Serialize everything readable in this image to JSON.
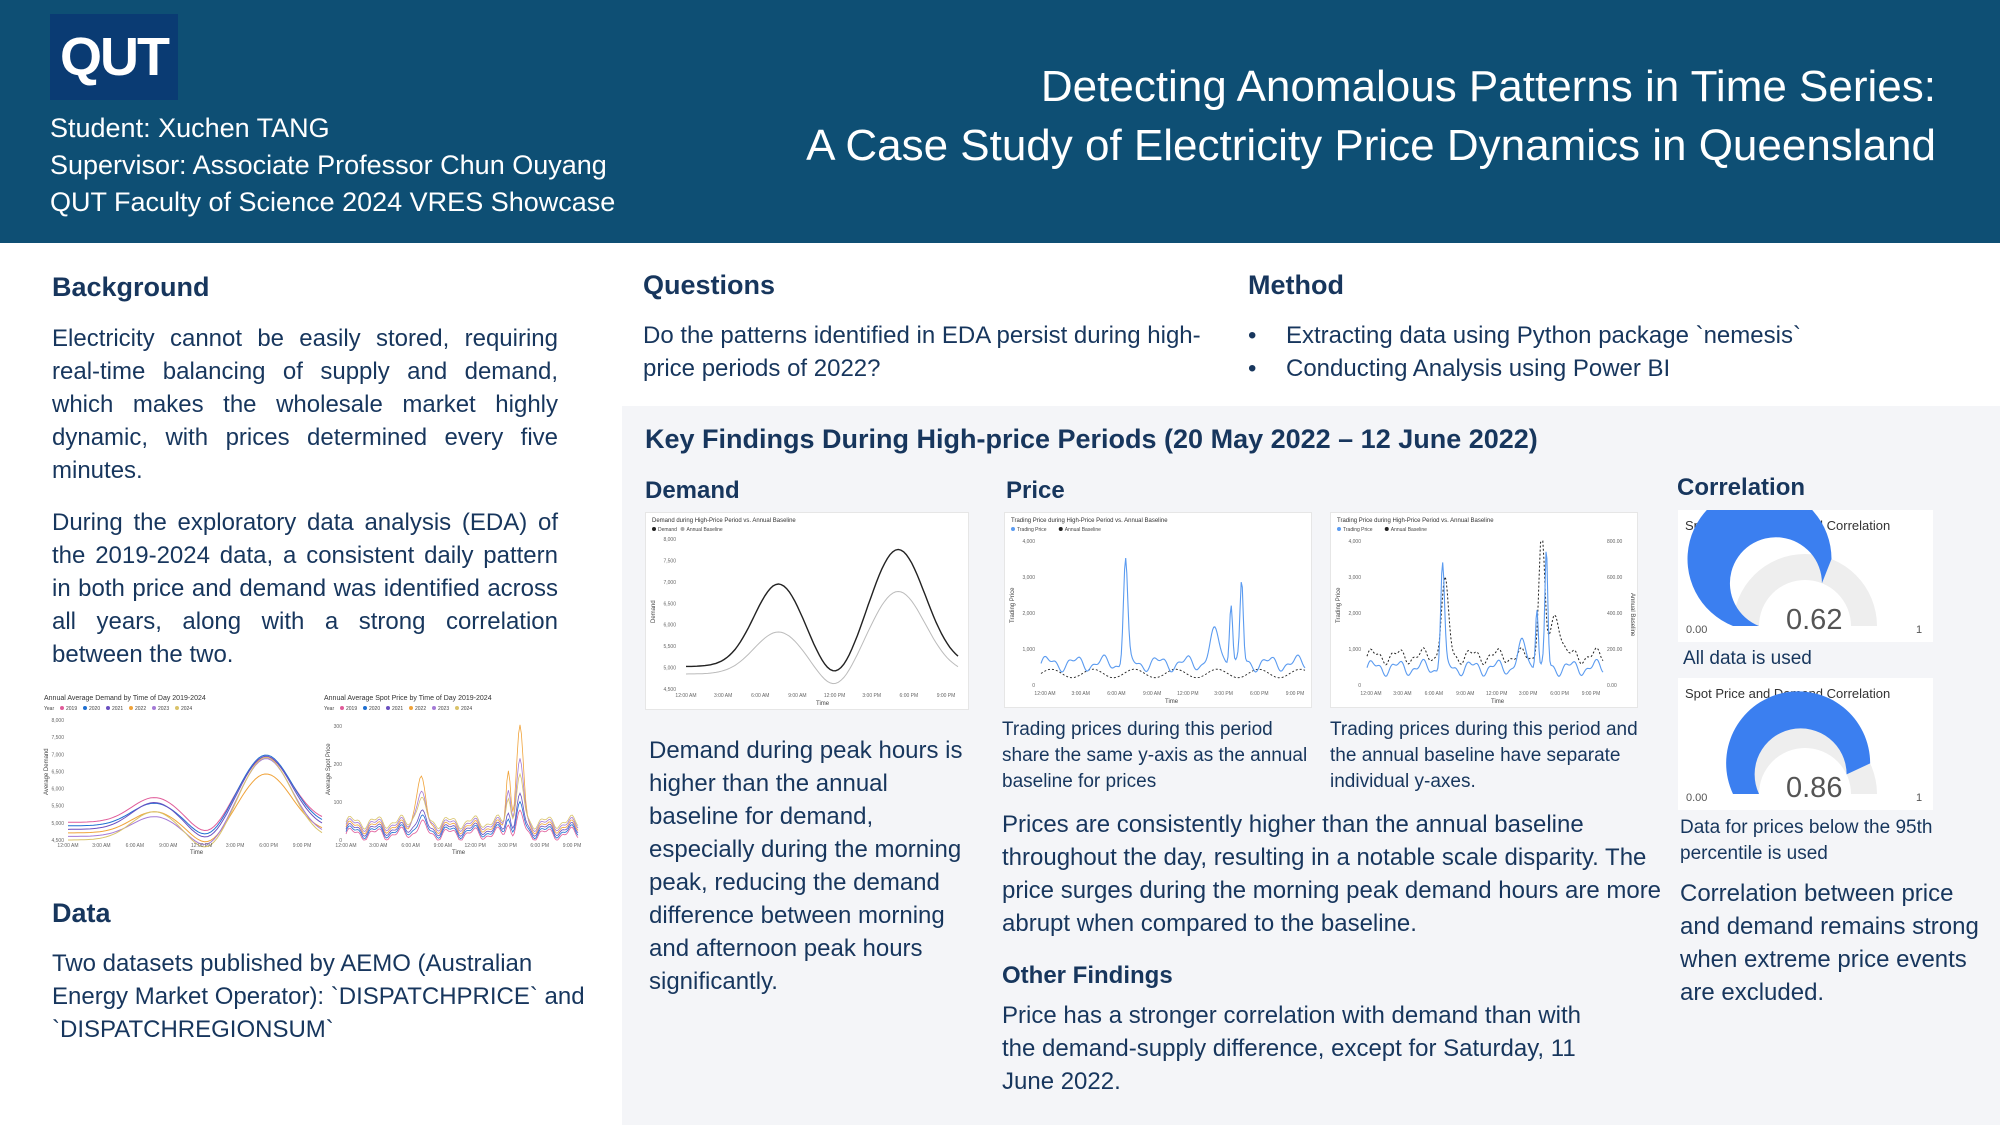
{
  "header": {
    "logo_text": "QUT",
    "student": "Student: Xuchen TANG",
    "supervisor": "Supervisor: Associate Professor Chun Ouyang",
    "showcase": "QUT Faculty of Science 2024 VRES Showcase",
    "title_line1": "Detecting Anomalous Patterns in Time Series:",
    "title_line2": "A Case Study of Electricity Price Dynamics in Queensland"
  },
  "background": {
    "heading": "Background",
    "para1": "Electricity cannot be easily stored, requiring real-time balancing of supply and demand, which makes the wholesale market highly dynamic, with prices determined every five minutes.",
    "para2": "During the exploratory data analysis (EDA) of the 2019-2024 data, a consistent daily pattern in both price and demand was identified across all years, along with a strong correlation between the two."
  },
  "eda_charts": {
    "demand_title": "Annual Average Demand by Time of Day 2019-2024",
    "price_title": "Annual Average Spot Price by Time of Day 2019-2024",
    "legend_label": "Year",
    "years": [
      "2019",
      "2020",
      "2021",
      "2022",
      "2023",
      "2024"
    ],
    "year_colors": [
      "#e05c9a",
      "#1f6fd1",
      "#6a4fc0",
      "#f0a33a",
      "#a47ad6",
      "#d9c36a"
    ],
    "demand_ylabel": "Average Demand",
    "price_ylabel": "Average Spot Price",
    "xlabel": "Time",
    "demand_yticks": [
      "8,000",
      "7,500",
      "7,000",
      "6,500",
      "6,000",
      "5,500",
      "5,000",
      "4,500"
    ],
    "price_yticks": [
      "300",
      "200",
      "100",
      "0"
    ],
    "xticks": [
      "12:00 AM",
      "3:00 AM",
      "6:00 AM",
      "9:00 AM",
      "12:00 PM",
      "3:00 PM",
      "6:00 PM",
      "9:00 PM"
    ]
  },
  "data_section": {
    "heading": "Data",
    "text": "Two datasets published by AEMO (Australian Energy Market Operator): `DISPATCHPRICE` and `DISPATCHREGIONSUM`"
  },
  "questions": {
    "heading": "Questions",
    "text": "Do the patterns identified in EDA persist during high-price periods of 2022?"
  },
  "method": {
    "heading": "Method",
    "items": [
      "Extracting data using Python package  `nemesis`",
      "Conducting Analysis using Power BI"
    ]
  },
  "findings": {
    "heading": "Key Findings During High-price Periods (20 May 2022 – 12 June 2022)",
    "demand": {
      "heading": "Demand",
      "chart_title": "Demand during High-Price Period vs. Annual Baseline",
      "legend": [
        "Demand",
        "Annual Baseline"
      ],
      "ylabel": "Demand",
      "xlabel": "Time",
      "yticks": [
        "8,000",
        "7,500",
        "7,000",
        "6,500",
        "6,000",
        "5,500",
        "5,000",
        "4,500"
      ],
      "xticks": [
        "12:00 AM",
        "3:00 AM",
        "6:00 AM",
        "9:00 AM",
        "12:00 PM",
        "3:00 PM",
        "6:00 PM",
        "9:00 PM"
      ],
      "text": "Demand during peak hours is higher than the annual baseline for demand, especially during the morning peak, reducing the demand difference between morning and afternoon peak hours significantly."
    },
    "price": {
      "heading": "Price",
      "chart1_title": "Trading Price during High-Price Period vs. Annual Baseline",
      "chart2_title": "Trading Price during High-Price Period vs. Annual Baseline",
      "legend": [
        "Trading Price",
        "Annual Baseline"
      ],
      "ylabel": "Trading Price",
      "ylabel_right": "Annual Baseline",
      "xlabel": "Time",
      "chart1_yticks": [
        "4,000",
        "3,000",
        "2,000",
        "1,000",
        "0"
      ],
      "chart2_yticks": [
        "4,000",
        "3,000",
        "2,000",
        "1,000",
        "0"
      ],
      "chart2_yticks_right": [
        "800.00",
        "600.00",
        "400.00",
        "200.00",
        "0.00"
      ],
      "xticks": [
        "12:00 AM",
        "3:00 AM",
        "6:00 AM",
        "9:00 AM",
        "12:00 PM",
        "3:00 PM",
        "6:00 PM",
        "9:00 PM"
      ],
      "caption1": "Trading prices during this period share the same y-axis as the annual baseline for prices",
      "caption2": "Trading prices during this period and the annual baseline have separate individual y-axes.",
      "text": "Prices are consistently higher than the annual baseline throughout the day, resulting in a notable scale disparity. The price surges during the morning peak demand hours are more abrupt when compared to the baseline."
    },
    "other": {
      "heading": "Other Findings",
      "text": "Price has a stronger correlation with demand than with the demand-supply difference, except for Saturday, 11 June 2022."
    },
    "correlation": {
      "heading": "Correlation",
      "gauge_title": "Spot Price and Demand Correlation",
      "gauge1_value": "0.62",
      "gauge1_fraction": 0.62,
      "gauge1_caption": "All data is used",
      "gauge2_value": "0.86",
      "gauge2_fraction": 0.86,
      "gauge2_caption": "Data for prices below the 95th percentile is used",
      "gauge_min": "0.00",
      "gauge_max": "1",
      "text": "Correlation between price and demand remains strong when extreme price events are excluded."
    }
  },
  "colors": {
    "header_bg": "#0e4f74",
    "heading": "#17365d",
    "panel_bg": "#f4f5f8",
    "gauge_fill": "#3b7ff0",
    "gauge_track": "#eeeeee",
    "price_line": "#5b9bf0",
    "baseline_line": "#1f2937"
  }
}
